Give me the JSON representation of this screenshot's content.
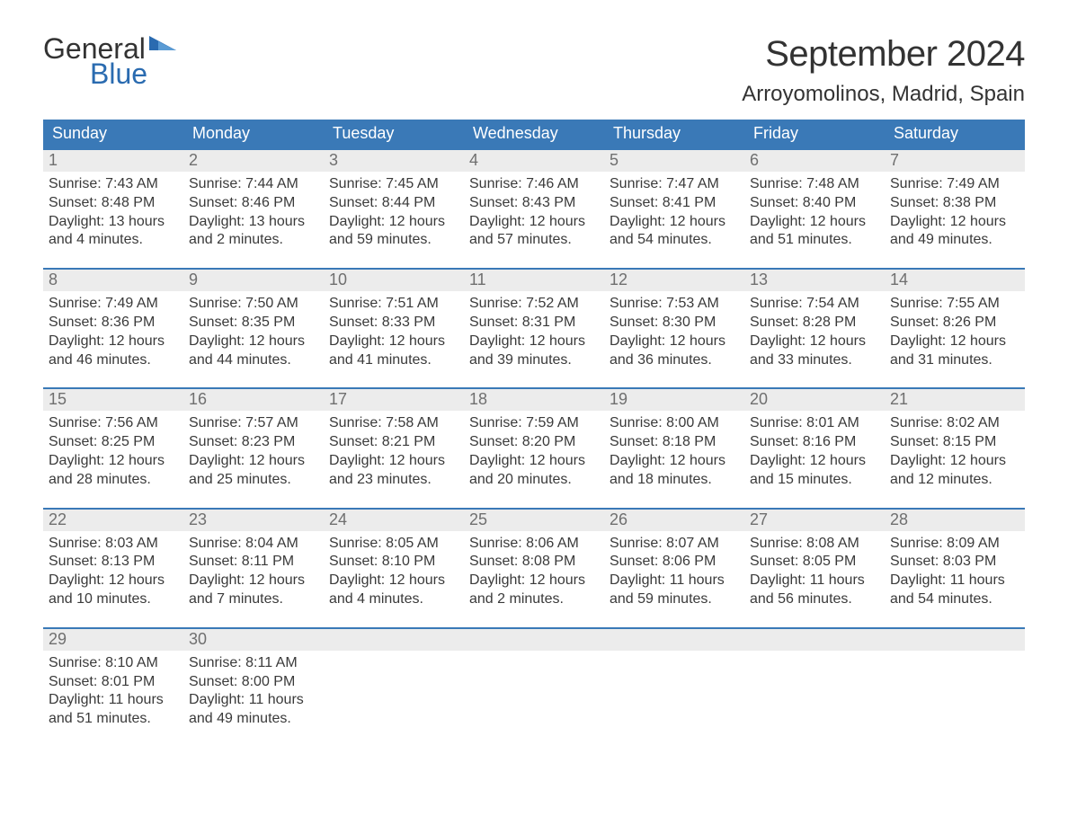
{
  "logo": {
    "line1": "General",
    "line2": "Blue",
    "text_color": "#333333",
    "accent_color": "#2a6bb0"
  },
  "title": "September 2024",
  "location": "Arroyomolinos, Madrid, Spain",
  "header_bg": "#3a79b7",
  "header_text_color": "#ffffff",
  "daynum_bg": "#ececec",
  "daynum_color": "#6f6f6f",
  "body_text_color": "#3a3a3a",
  "week_border_color": "#3a79b7",
  "columns": [
    "Sunday",
    "Monday",
    "Tuesday",
    "Wednesday",
    "Thursday",
    "Friday",
    "Saturday"
  ],
  "weeks": [
    [
      {
        "n": "1",
        "sunrise": "Sunrise: 7:43 AM",
        "sunset": "Sunset: 8:48 PM",
        "dl1": "Daylight: 13 hours",
        "dl2": "and 4 minutes."
      },
      {
        "n": "2",
        "sunrise": "Sunrise: 7:44 AM",
        "sunset": "Sunset: 8:46 PM",
        "dl1": "Daylight: 13 hours",
        "dl2": "and 2 minutes."
      },
      {
        "n": "3",
        "sunrise": "Sunrise: 7:45 AM",
        "sunset": "Sunset: 8:44 PM",
        "dl1": "Daylight: 12 hours",
        "dl2": "and 59 minutes."
      },
      {
        "n": "4",
        "sunrise": "Sunrise: 7:46 AM",
        "sunset": "Sunset: 8:43 PM",
        "dl1": "Daylight: 12 hours",
        "dl2": "and 57 minutes."
      },
      {
        "n": "5",
        "sunrise": "Sunrise: 7:47 AM",
        "sunset": "Sunset: 8:41 PM",
        "dl1": "Daylight: 12 hours",
        "dl2": "and 54 minutes."
      },
      {
        "n": "6",
        "sunrise": "Sunrise: 7:48 AM",
        "sunset": "Sunset: 8:40 PM",
        "dl1": "Daylight: 12 hours",
        "dl2": "and 51 minutes."
      },
      {
        "n": "7",
        "sunrise": "Sunrise: 7:49 AM",
        "sunset": "Sunset: 8:38 PM",
        "dl1": "Daylight: 12 hours",
        "dl2": "and 49 minutes."
      }
    ],
    [
      {
        "n": "8",
        "sunrise": "Sunrise: 7:49 AM",
        "sunset": "Sunset: 8:36 PM",
        "dl1": "Daylight: 12 hours",
        "dl2": "and 46 minutes."
      },
      {
        "n": "9",
        "sunrise": "Sunrise: 7:50 AM",
        "sunset": "Sunset: 8:35 PM",
        "dl1": "Daylight: 12 hours",
        "dl2": "and 44 minutes."
      },
      {
        "n": "10",
        "sunrise": "Sunrise: 7:51 AM",
        "sunset": "Sunset: 8:33 PM",
        "dl1": "Daylight: 12 hours",
        "dl2": "and 41 minutes."
      },
      {
        "n": "11",
        "sunrise": "Sunrise: 7:52 AM",
        "sunset": "Sunset: 8:31 PM",
        "dl1": "Daylight: 12 hours",
        "dl2": "and 39 minutes."
      },
      {
        "n": "12",
        "sunrise": "Sunrise: 7:53 AM",
        "sunset": "Sunset: 8:30 PM",
        "dl1": "Daylight: 12 hours",
        "dl2": "and 36 minutes."
      },
      {
        "n": "13",
        "sunrise": "Sunrise: 7:54 AM",
        "sunset": "Sunset: 8:28 PM",
        "dl1": "Daylight: 12 hours",
        "dl2": "and 33 minutes."
      },
      {
        "n": "14",
        "sunrise": "Sunrise: 7:55 AM",
        "sunset": "Sunset: 8:26 PM",
        "dl1": "Daylight: 12 hours",
        "dl2": "and 31 minutes."
      }
    ],
    [
      {
        "n": "15",
        "sunrise": "Sunrise: 7:56 AM",
        "sunset": "Sunset: 8:25 PM",
        "dl1": "Daylight: 12 hours",
        "dl2": "and 28 minutes."
      },
      {
        "n": "16",
        "sunrise": "Sunrise: 7:57 AM",
        "sunset": "Sunset: 8:23 PM",
        "dl1": "Daylight: 12 hours",
        "dl2": "and 25 minutes."
      },
      {
        "n": "17",
        "sunrise": "Sunrise: 7:58 AM",
        "sunset": "Sunset: 8:21 PM",
        "dl1": "Daylight: 12 hours",
        "dl2": "and 23 minutes."
      },
      {
        "n": "18",
        "sunrise": "Sunrise: 7:59 AM",
        "sunset": "Sunset: 8:20 PM",
        "dl1": "Daylight: 12 hours",
        "dl2": "and 20 minutes."
      },
      {
        "n": "19",
        "sunrise": "Sunrise: 8:00 AM",
        "sunset": "Sunset: 8:18 PM",
        "dl1": "Daylight: 12 hours",
        "dl2": "and 18 minutes."
      },
      {
        "n": "20",
        "sunrise": "Sunrise: 8:01 AM",
        "sunset": "Sunset: 8:16 PM",
        "dl1": "Daylight: 12 hours",
        "dl2": "and 15 minutes."
      },
      {
        "n": "21",
        "sunrise": "Sunrise: 8:02 AM",
        "sunset": "Sunset: 8:15 PM",
        "dl1": "Daylight: 12 hours",
        "dl2": "and 12 minutes."
      }
    ],
    [
      {
        "n": "22",
        "sunrise": "Sunrise: 8:03 AM",
        "sunset": "Sunset: 8:13 PM",
        "dl1": "Daylight: 12 hours",
        "dl2": "and 10 minutes."
      },
      {
        "n": "23",
        "sunrise": "Sunrise: 8:04 AM",
        "sunset": "Sunset: 8:11 PM",
        "dl1": "Daylight: 12 hours",
        "dl2": "and 7 minutes."
      },
      {
        "n": "24",
        "sunrise": "Sunrise: 8:05 AM",
        "sunset": "Sunset: 8:10 PM",
        "dl1": "Daylight: 12 hours",
        "dl2": "and 4 minutes."
      },
      {
        "n": "25",
        "sunrise": "Sunrise: 8:06 AM",
        "sunset": "Sunset: 8:08 PM",
        "dl1": "Daylight: 12 hours",
        "dl2": "and 2 minutes."
      },
      {
        "n": "26",
        "sunrise": "Sunrise: 8:07 AM",
        "sunset": "Sunset: 8:06 PM",
        "dl1": "Daylight: 11 hours",
        "dl2": "and 59 minutes."
      },
      {
        "n": "27",
        "sunrise": "Sunrise: 8:08 AM",
        "sunset": "Sunset: 8:05 PM",
        "dl1": "Daylight: 11 hours",
        "dl2": "and 56 minutes."
      },
      {
        "n": "28",
        "sunrise": "Sunrise: 8:09 AM",
        "sunset": "Sunset: 8:03 PM",
        "dl1": "Daylight: 11 hours",
        "dl2": "and 54 minutes."
      }
    ],
    [
      {
        "n": "29",
        "sunrise": "Sunrise: 8:10 AM",
        "sunset": "Sunset: 8:01 PM",
        "dl1": "Daylight: 11 hours",
        "dl2": "and 51 minutes."
      },
      {
        "n": "30",
        "sunrise": "Sunrise: 8:11 AM",
        "sunset": "Sunset: 8:00 PM",
        "dl1": "Daylight: 11 hours",
        "dl2": "and 49 minutes."
      },
      {
        "n": "",
        "sunrise": "",
        "sunset": "",
        "dl1": "",
        "dl2": ""
      },
      {
        "n": "",
        "sunrise": "",
        "sunset": "",
        "dl1": "",
        "dl2": ""
      },
      {
        "n": "",
        "sunrise": "",
        "sunset": "",
        "dl1": "",
        "dl2": ""
      },
      {
        "n": "",
        "sunrise": "",
        "sunset": "",
        "dl1": "",
        "dl2": ""
      },
      {
        "n": "",
        "sunrise": "",
        "sunset": "",
        "dl1": "",
        "dl2": ""
      }
    ]
  ]
}
